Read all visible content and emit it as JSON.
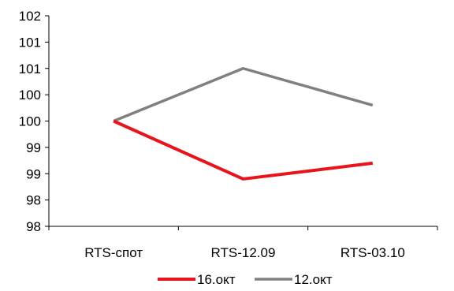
{
  "chart_data": {
    "type": "line",
    "categories": [
      "RTS-спот",
      "RTS-12.09",
      "RTS-03.10"
    ],
    "series": [
      {
        "name": "16.окт",
        "values": [
          100.0,
          98.9,
          99.2
        ],
        "color": "#e8131b"
      },
      {
        "name": "12.окт",
        "values": [
          100.0,
          101.0,
          100.3
        ],
        "color": "#808080"
      }
    ],
    "y_tick_labels": [
      "102",
      "101",
      "101",
      "100",
      "100",
      "99",
      "99",
      "98",
      "98"
    ],
    "ylim": [
      98,
      102
    ],
    "grid": false,
    "legend_position": "bottom-center"
  }
}
